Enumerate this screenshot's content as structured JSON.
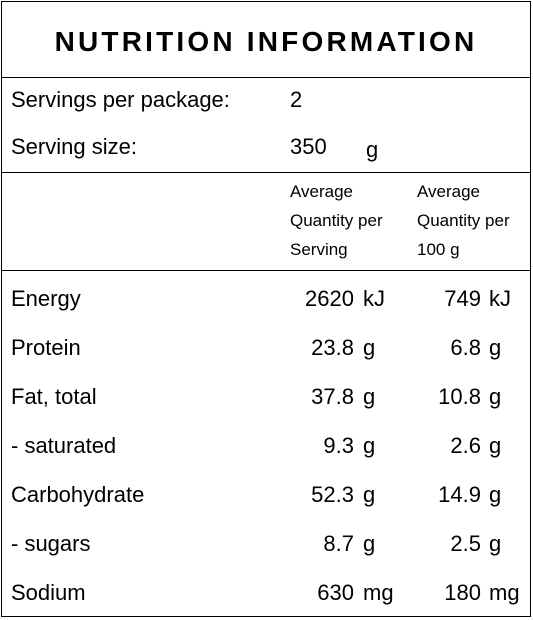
{
  "title": "NUTRITION INFORMATION",
  "servings": {
    "label": "Servings per package:",
    "value": "2"
  },
  "serving_size": {
    "label": "Serving size:",
    "value": "350",
    "unit": "g"
  },
  "headers": {
    "per_serving": [
      "Average",
      "Quantity per",
      "Serving"
    ],
    "per_100g": [
      "Average",
      "Quantity per",
      "100 g"
    ]
  },
  "rows": [
    {
      "label": "Energy",
      "serving": "2620",
      "serving_unit": "kJ",
      "per100": "749",
      "per100_unit": "kJ"
    },
    {
      "label": "Protein",
      "serving": "23.8",
      "serving_unit": "g",
      "per100": "6.8",
      "per100_unit": "g"
    },
    {
      "label": "Fat, total",
      "serving": "37.8",
      "serving_unit": "g",
      "per100": "10.8",
      "per100_unit": "g"
    },
    {
      "label": "- saturated",
      "serving": "9.3",
      "serving_unit": "g",
      "per100": "2.6",
      "per100_unit": "g"
    },
    {
      "label": "Carbohydrate",
      "serving": "52.3",
      "serving_unit": "g",
      "per100": "14.9",
      "per100_unit": "g"
    },
    {
      "label": "- sugars",
      "serving": "8.7",
      "serving_unit": "g",
      "per100": "2.5",
      "per100_unit": "g"
    },
    {
      "label": "Sodium",
      "serving": "630",
      "serving_unit": "mg",
      "per100": "180",
      "per100_unit": "mg"
    }
  ]
}
